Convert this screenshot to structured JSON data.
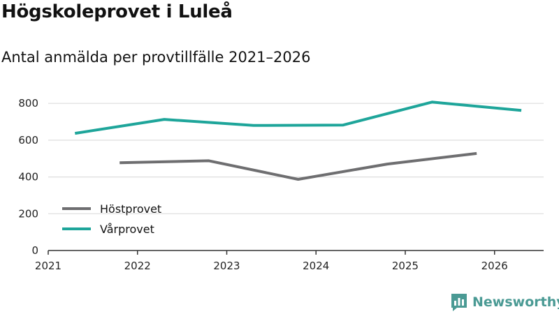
{
  "header": {
    "title": "Högskoleprovet i Luleå",
    "subtitle": "Antal anmälda per provtillfälle 2021–2026"
  },
  "brand": {
    "name": "Newsworthy",
    "color": "#4a9a94"
  },
  "colors": {
    "hostprovet": "#6e6e70",
    "varprovet": "#1ea59a",
    "grid": "#dddddd",
    "axis": "#333333"
  },
  "chart_data": {
    "type": "line",
    "title": "Högskoleprovet i Luleå",
    "subtitle": "Antal anmälda per provtillfälle 2021–2026",
    "xlabel": "",
    "ylabel": "",
    "xlim": [
      2021,
      2026.55
    ],
    "ylim": [
      0,
      850
    ],
    "x_ticks": [
      2021,
      2022,
      2023,
      2024,
      2025,
      2026
    ],
    "x_tick_labels": [
      "2021",
      "2022",
      "2023",
      "2024",
      "2025",
      "2026"
    ],
    "y_ticks": [
      0,
      200,
      400,
      600,
      800
    ],
    "y_tick_labels": [
      "0",
      "200",
      "400",
      "600",
      "800"
    ],
    "grid": true,
    "legend_position": "bottom-left",
    "series": [
      {
        "name": "Höstprovet",
        "color": "#6e6e70",
        "x": [
          2021.8,
          2022.8,
          2023.8,
          2024.8,
          2025.8
        ],
        "values": [
          477,
          488,
          387,
          470,
          528
        ]
      },
      {
        "name": "Vårprovet",
        "color": "#1ea59a",
        "x": [
          2021.3,
          2022.3,
          2023.3,
          2024.3,
          2025.3,
          2026.3
        ],
        "values": [
          637,
          713,
          680,
          682,
          807,
          762
        ]
      }
    ]
  }
}
